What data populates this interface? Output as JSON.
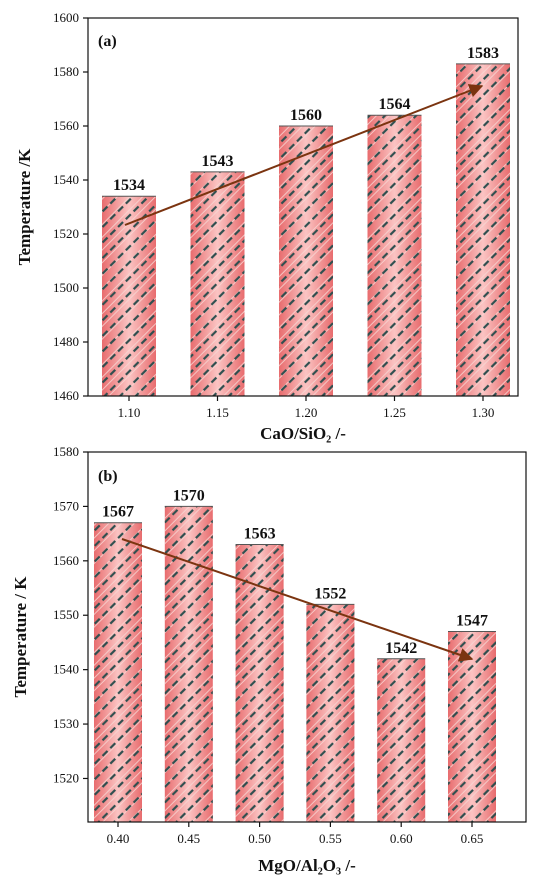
{
  "chart_data": [
    {
      "type": "bar",
      "panel_label": "(a)",
      "categories": [
        "1.10",
        "1.15",
        "1.20",
        "1.25",
        "1.30"
      ],
      "values": [
        1534,
        1543,
        1560,
        1564,
        1583
      ],
      "data_labels": [
        "1534",
        "1543",
        "1560",
        "1564",
        "1583"
      ],
      "xlabel": "CaO/SiO₂ /-",
      "ylabel": "Temperature /K",
      "ylim": [
        1460,
        1600
      ],
      "yticks": [
        "1460",
        "1480",
        "1500",
        "1520",
        "1540",
        "1560",
        "1580",
        "1600"
      ],
      "trend": "increasing",
      "grid": false,
      "bar_color": "#f0888a",
      "hatch_color": "#2f4f4f",
      "arrow_color": "#7b3410"
    },
    {
      "type": "bar",
      "panel_label": "(b)",
      "categories": [
        "0.40",
        "0.45",
        "0.50",
        "0.55",
        "0.60",
        "0.65"
      ],
      "values": [
        1567,
        1570,
        1563,
        1552,
        1542,
        1547
      ],
      "data_labels": [
        "1567",
        "1570",
        "1563",
        "1552",
        "1542",
        "1547"
      ],
      "xlabel": "MgO/Al₂O₃ /-",
      "ylabel": "Temperature / K",
      "ylim": [
        1512,
        1580
      ],
      "yticks": [
        "1520",
        "1530",
        "1540",
        "1550",
        "1560",
        "1570",
        "1580"
      ],
      "trend": "decreasing",
      "grid": false,
      "bar_color": "#f0888a",
      "hatch_color": "#2f4f4f",
      "arrow_color": "#7b3410"
    }
  ]
}
